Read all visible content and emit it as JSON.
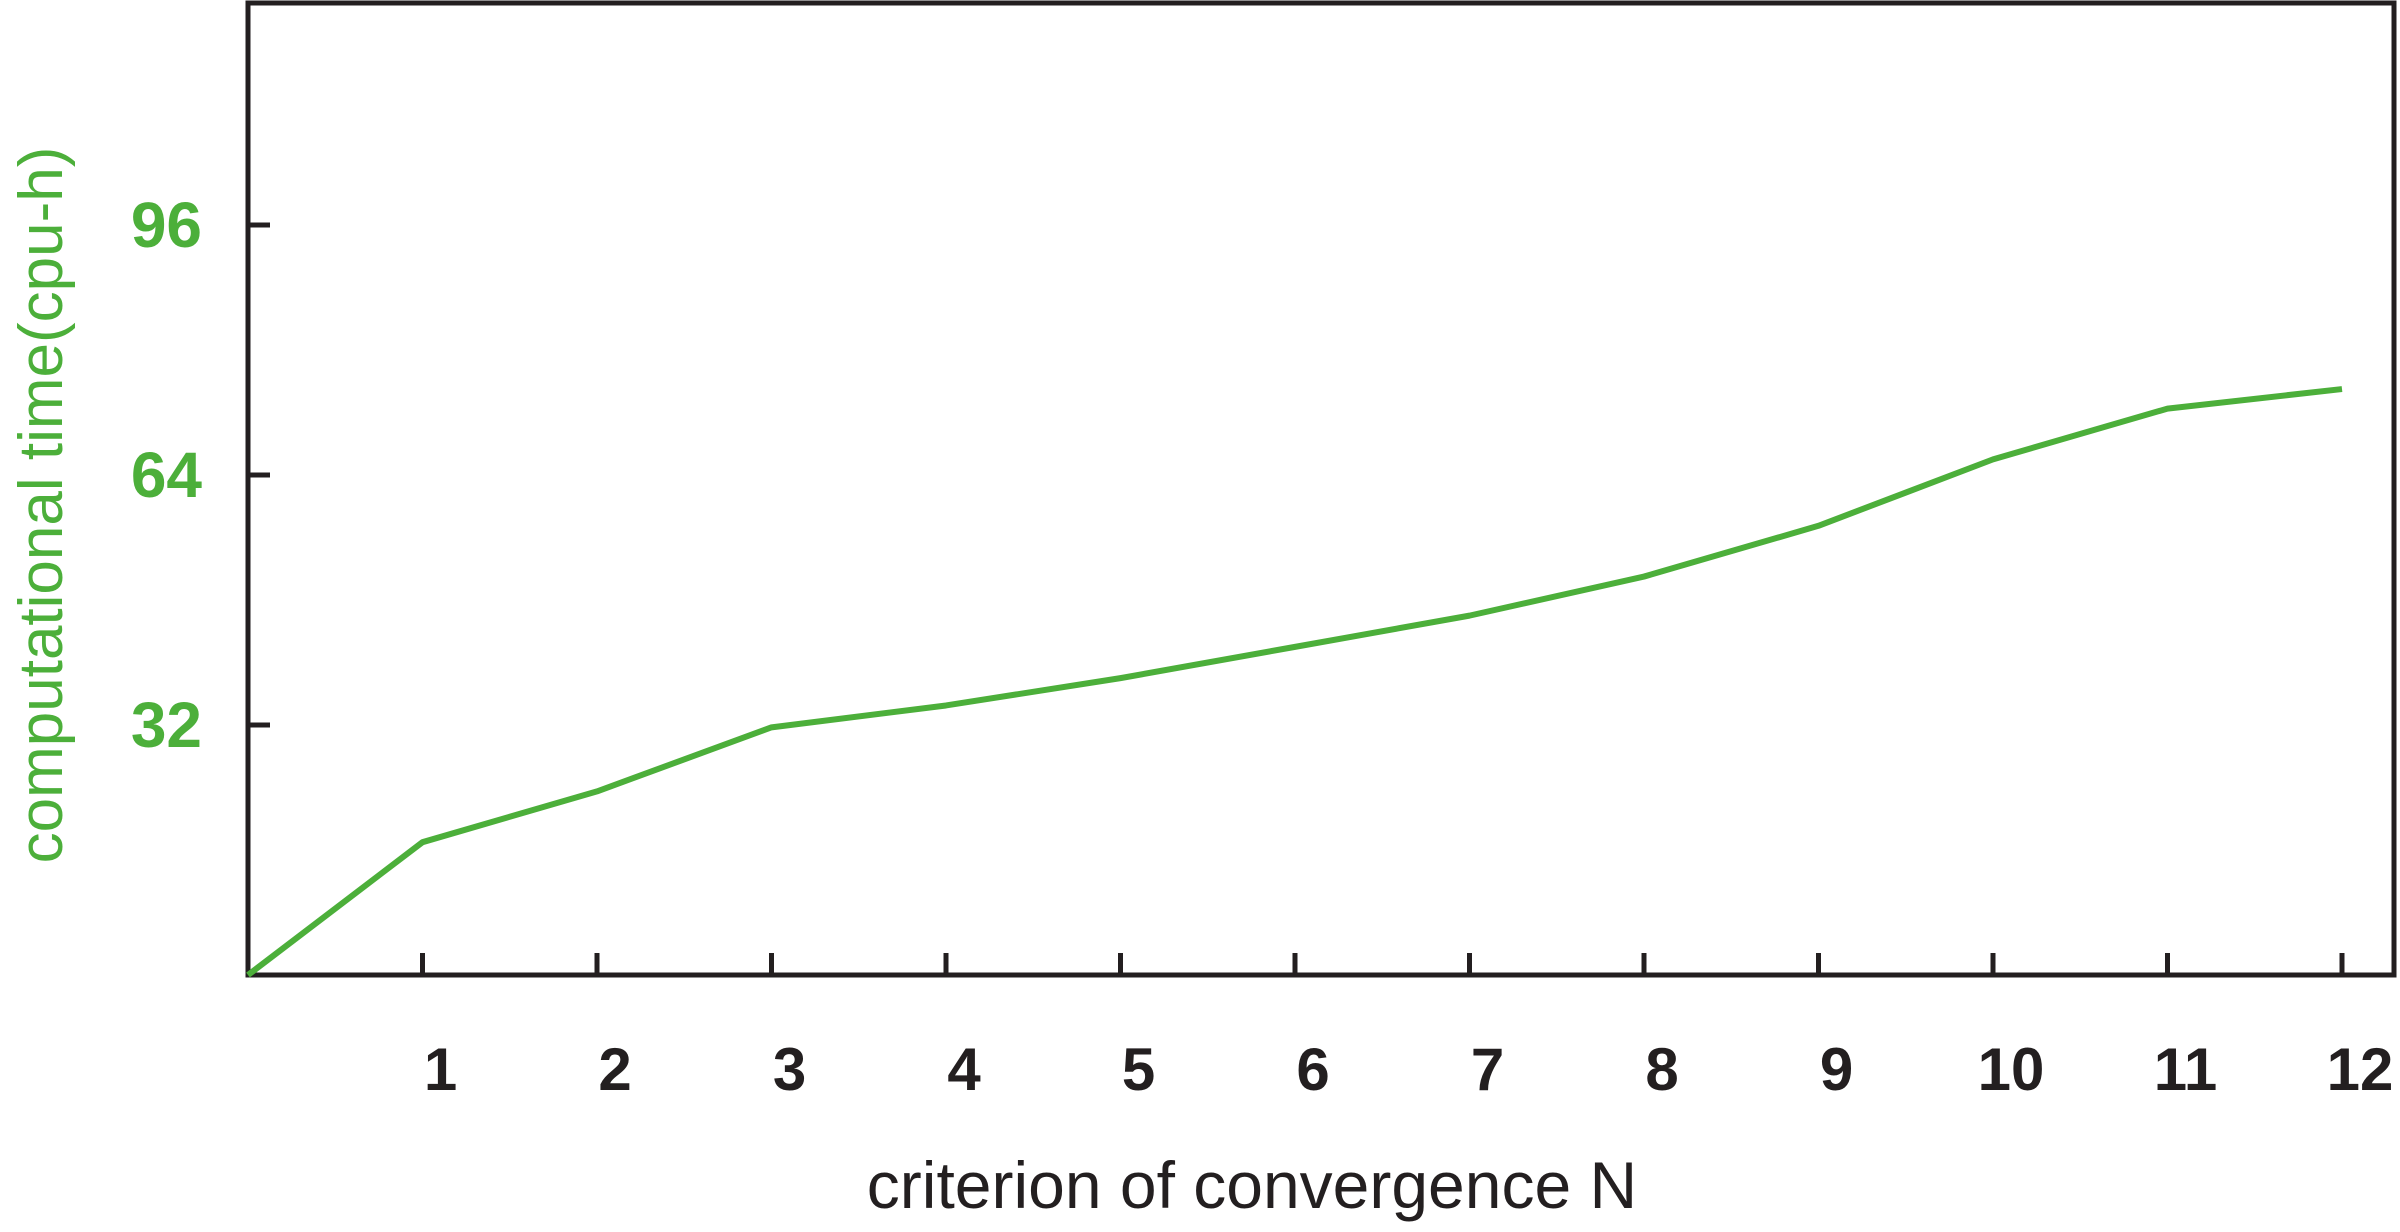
{
  "chart_data": {
    "type": "line",
    "title": "",
    "xlabel": "criterion of convergence N",
    "ylabel": "computational time(cpu-h)",
    "xlim": [
      0,
      12
    ],
    "ylim": [
      0,
      130
    ],
    "x_ticks": [
      1,
      2,
      3,
      4,
      5,
      6,
      7,
      8,
      9,
      10,
      11,
      12
    ],
    "x_tick_labels": [
      "1",
      "2",
      "3",
      "4",
      "5",
      "6",
      "7",
      "8",
      "9",
      "10",
      "11",
      "12"
    ],
    "y_ticks": [
      32,
      64,
      96
    ],
    "y_tick_labels": [
      "32",
      "64",
      "96"
    ],
    "grid": false,
    "legend": "none",
    "series": [
      {
        "color": "#4caf3a",
        "x": [
          0,
          1,
          2,
          3,
          4,
          5,
          6,
          7,
          8,
          9,
          10,
          11,
          12
        ],
        "values": [
          0,
          17,
          23.5,
          31.7,
          34.5,
          38,
          42,
          46,
          51,
          57.5,
          66,
          72.5,
          75
        ]
      }
    ],
    "colors": {
      "axis": "#231f20",
      "series": "#4caf3a",
      "y_axis_text": "#4caf3a"
    }
  }
}
